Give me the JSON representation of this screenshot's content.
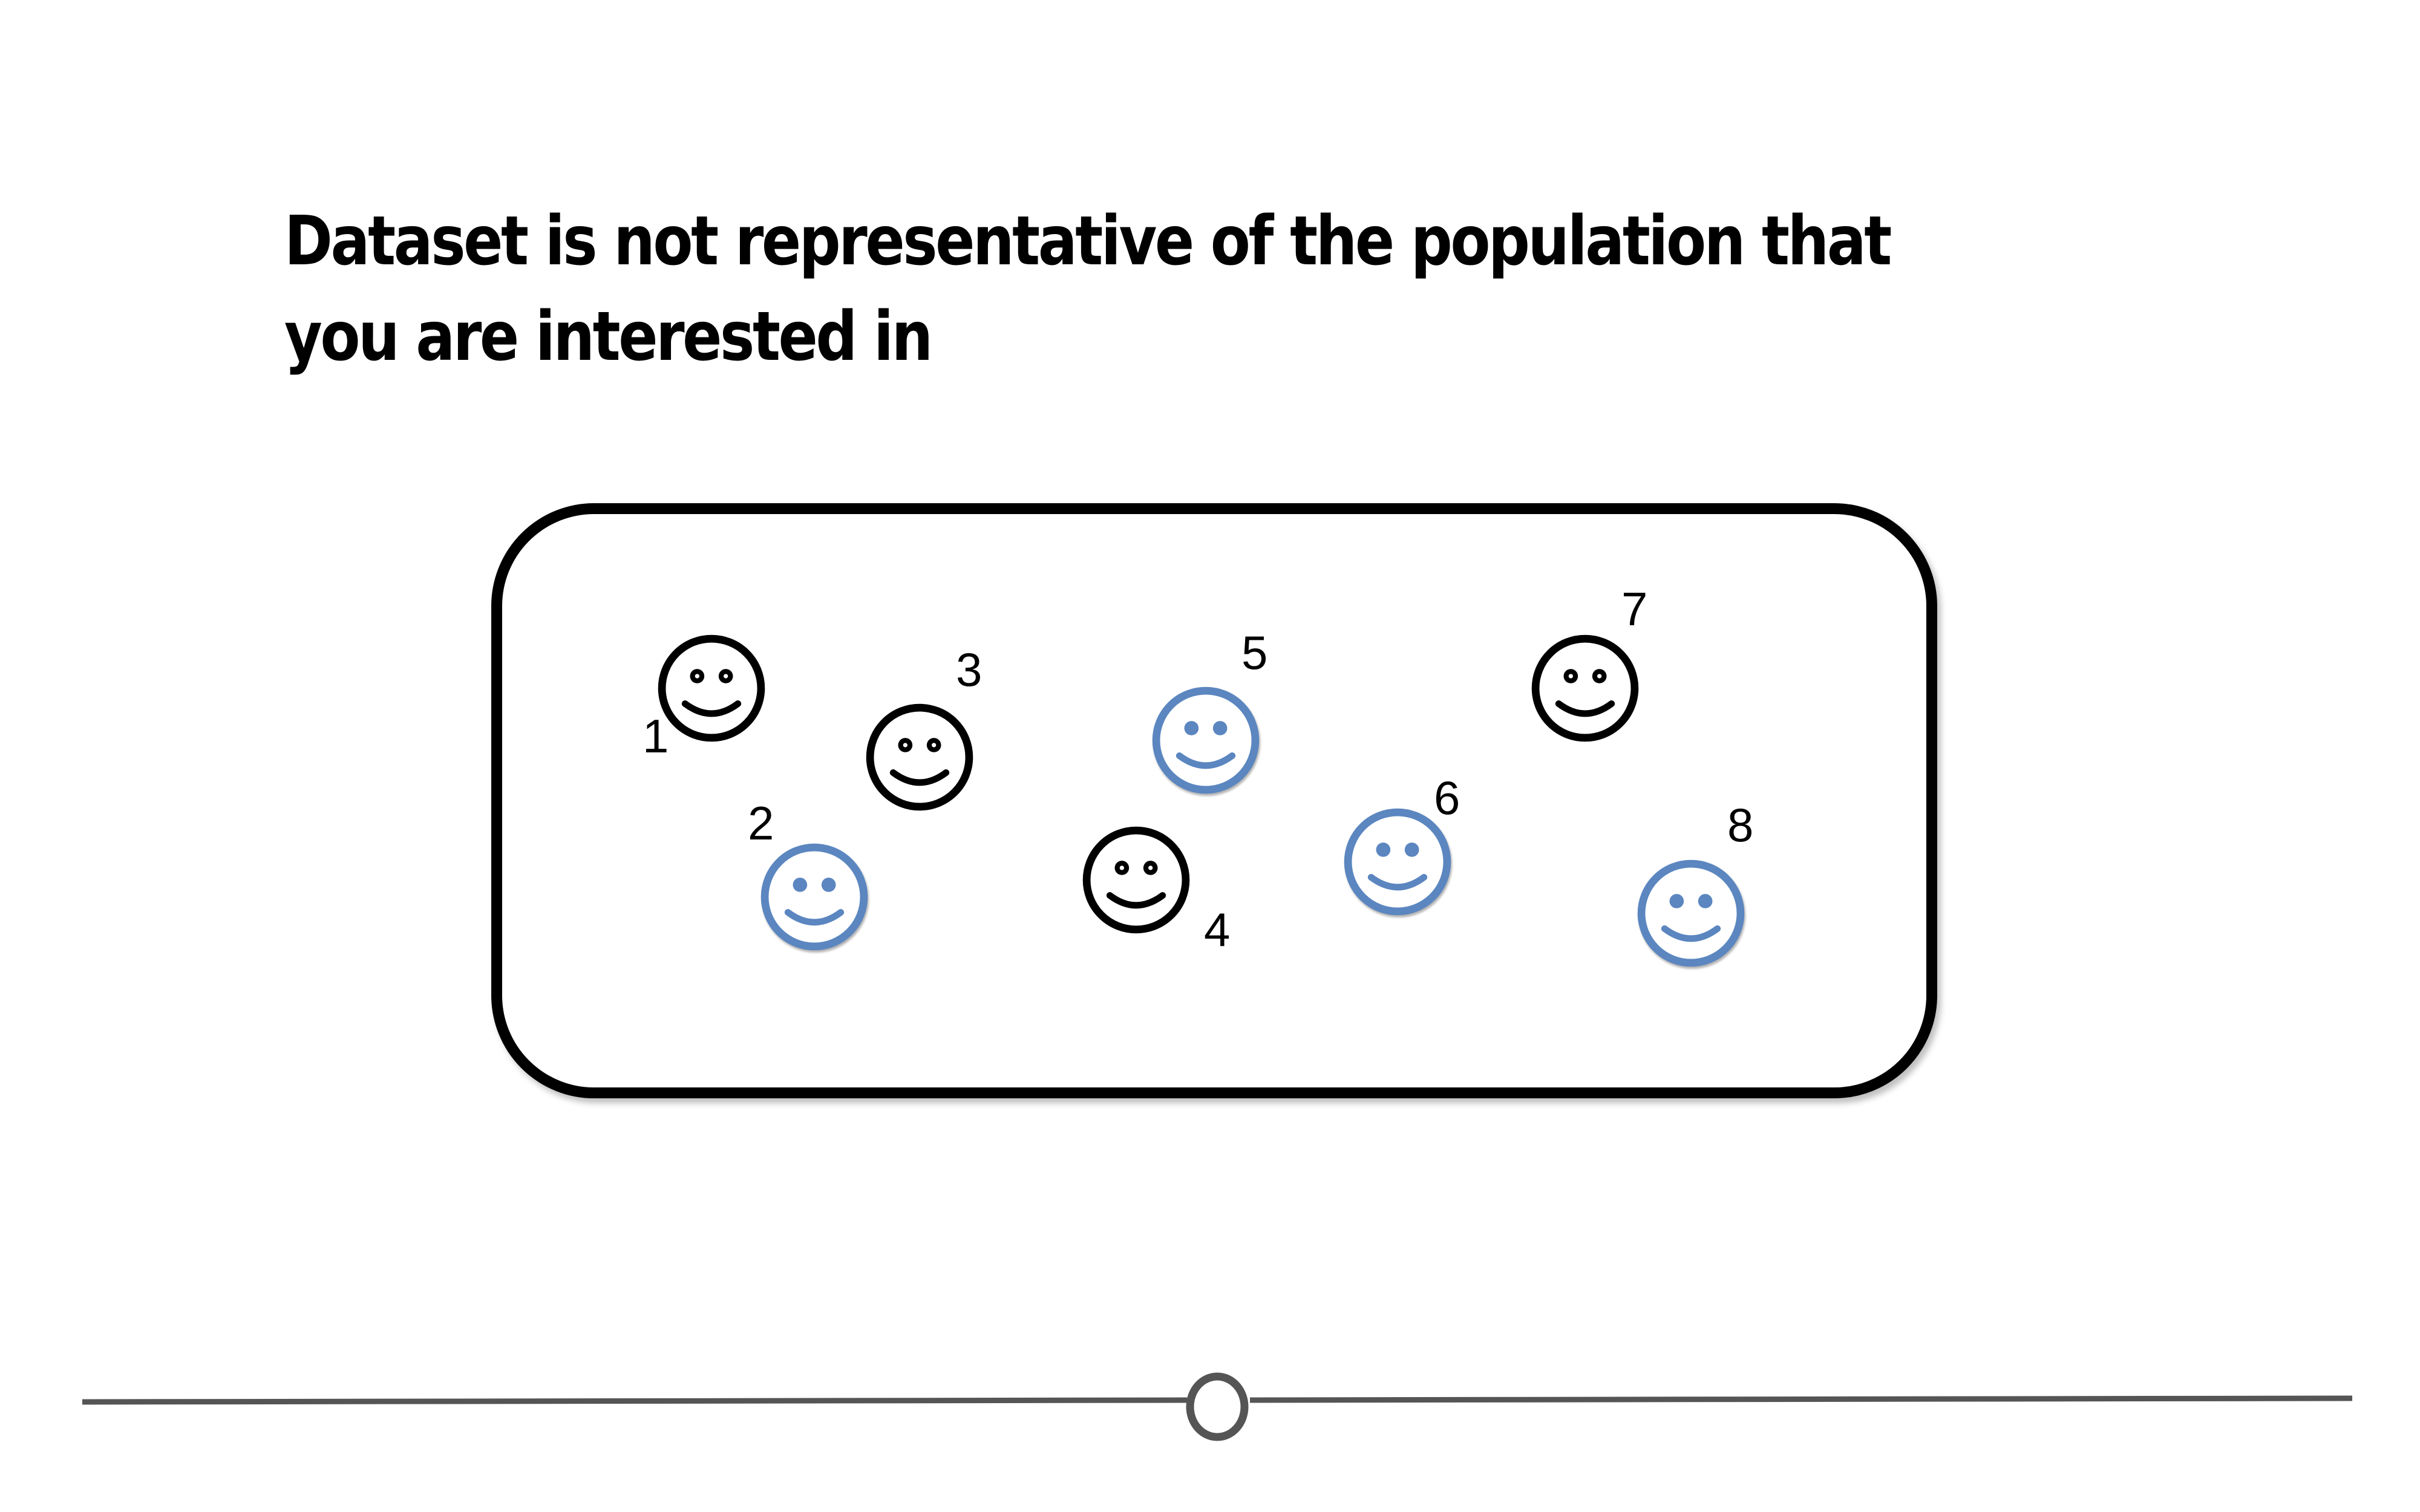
{
  "title": "Dataset is not representative of the population that you are interested in",
  "colors": {
    "group_a": "#000000",
    "group_b": "#5b86c0",
    "frame": "#000000",
    "timeline": "#555555"
  },
  "people": [
    {
      "label": "1",
      "group": "group_a",
      "icon": "smiley-face-icon"
    },
    {
      "label": "2",
      "group": "group_b",
      "icon": "smiley-face-icon"
    },
    {
      "label": "3",
      "group": "group_a",
      "icon": "smiley-face-icon"
    },
    {
      "label": "4",
      "group": "group_a",
      "icon": "smiley-face-icon"
    },
    {
      "label": "5",
      "group": "group_b",
      "icon": "smiley-face-icon"
    },
    {
      "label": "6",
      "group": "group_b",
      "icon": "smiley-face-icon"
    },
    {
      "label": "7",
      "group": "group_a",
      "icon": "smiley-face-icon"
    },
    {
      "label": "8",
      "group": "group_b",
      "icon": "smiley-face-icon"
    }
  ],
  "timeline": {
    "icon": "timeline-knob-icon"
  }
}
